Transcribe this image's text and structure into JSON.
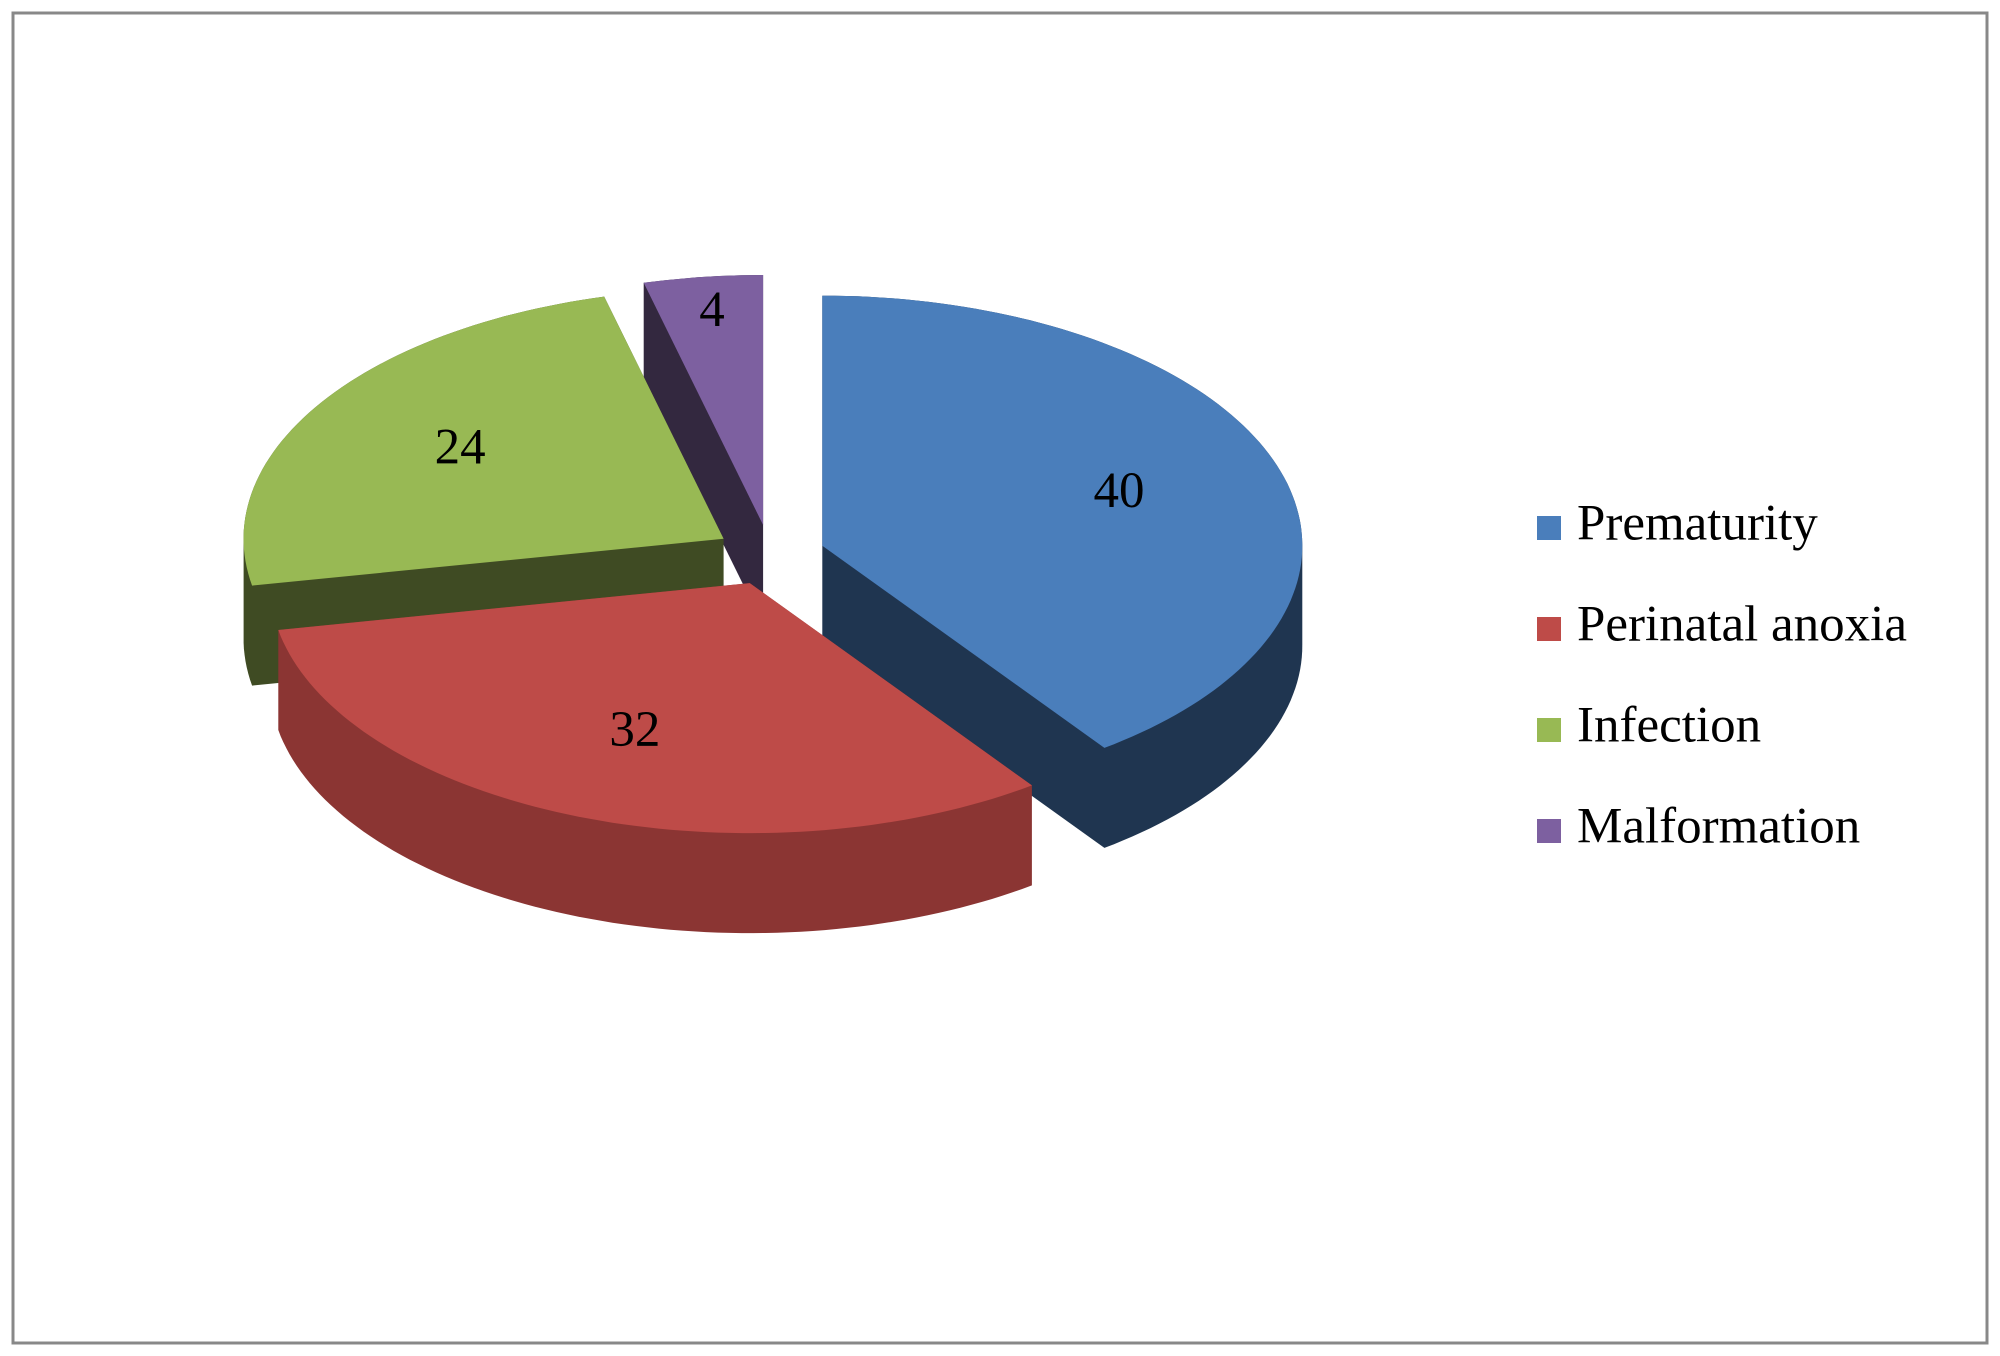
{
  "chart_data": {
    "type": "pie",
    "categories": [
      "Prematurity",
      "Perinatal anoxia",
      "Infection",
      "Malformation"
    ],
    "values": [
      40,
      32,
      24,
      4
    ],
    "colors": [
      "#4a7ebb",
      "#be4b48",
      "#98b954",
      "#7d60a0"
    ],
    "side_colors": [
      "#1f3550",
      "#8b3533",
      "#3f4b23",
      "#33283f"
    ],
    "legend": "right"
  }
}
